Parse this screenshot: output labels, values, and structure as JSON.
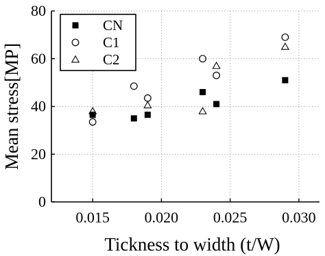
{
  "chart_data": {
    "type": "scatter",
    "xlabel": "Tickness to width (t/W)",
    "ylabel": "Mean stress[MP]",
    "xlim": [
      0.012,
      0.0315
    ],
    "ylim": [
      0,
      80
    ],
    "x_ticks": [
      0.015,
      0.02,
      0.025,
      0.03
    ],
    "x_tick_labels": [
      "0.015",
      "0.020",
      "0.025",
      "0.030"
    ],
    "y_ticks": [
      0,
      20,
      40,
      60,
      80
    ],
    "y_tick_labels": [
      "0",
      "20",
      "40",
      "60",
      "80"
    ],
    "grid": true,
    "legend_position": "top-left",
    "series": [
      {
        "name": "CN",
        "marker": "filled-square",
        "color": "#000000",
        "points": [
          [
            0.015,
            36.5
          ],
          [
            0.018,
            35
          ],
          [
            0.019,
            36.5
          ],
          [
            0.023,
            46
          ],
          [
            0.024,
            41
          ],
          [
            0.029,
            51
          ]
        ]
      },
      {
        "name": "C1",
        "marker": "open-circle",
        "color": "#000000",
        "points": [
          [
            0.015,
            33.5
          ],
          [
            0.018,
            48.5
          ],
          [
            0.019,
            43.5
          ],
          [
            0.023,
            60
          ],
          [
            0.024,
            53
          ],
          [
            0.029,
            69
          ]
        ]
      },
      {
        "name": "C2",
        "marker": "open-triangle",
        "color": "#000000",
        "points": [
          [
            0.015,
            38
          ],
          [
            0.019,
            40.5
          ],
          [
            0.023,
            38
          ],
          [
            0.024,
            57
          ],
          [
            0.029,
            65
          ]
        ]
      }
    ]
  }
}
